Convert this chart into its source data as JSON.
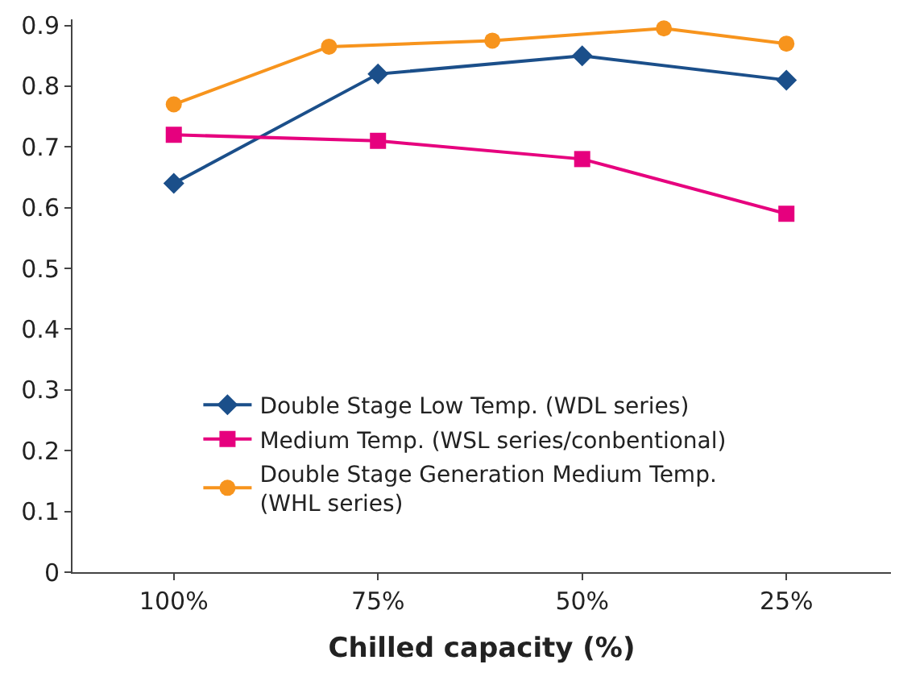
{
  "chart_data": {
    "type": "line",
    "xlabel": "Chilled capacity (%)",
    "xlim": [
      112.4,
      12.2
    ],
    "xticks": [
      {
        "value": 100,
        "label": "100%"
      },
      {
        "value": 75,
        "label": "75%"
      },
      {
        "value": 50,
        "label": "50%"
      },
      {
        "value": 25,
        "label": "25%"
      }
    ],
    "ylim": [
      0,
      0.91
    ],
    "yticks": [
      0,
      0.1,
      0.2,
      0.3,
      0.4,
      0.5,
      0.6,
      0.7,
      0.8,
      0.9
    ],
    "grid": false,
    "legend": "bottom",
    "line_style": "solid",
    "series": [
      {
        "name": "Double Stage Low Temp. (WDL series)",
        "color": "#1b4f8a",
        "marker": "diamond",
        "x": [
          100,
          75,
          50,
          25
        ],
        "values": [
          0.64,
          0.82,
          0.85,
          0.81
        ]
      },
      {
        "name": "Medium Temp. (WSL series/conbentional)",
        "color": "#e6007e",
        "marker": "square",
        "x": [
          100,
          75,
          50,
          25
        ],
        "values": [
          0.72,
          0.71,
          0.68,
          0.59
        ]
      },
      {
        "name": "Double Stage Generation Medium Temp.\n(WHL series)",
        "color": "#f7941d",
        "marker": "circle",
        "x": [
          100,
          81,
          61,
          40,
          25
        ],
        "values": [
          0.77,
          0.865,
          0.875,
          0.895,
          0.87
        ]
      }
    ]
  }
}
